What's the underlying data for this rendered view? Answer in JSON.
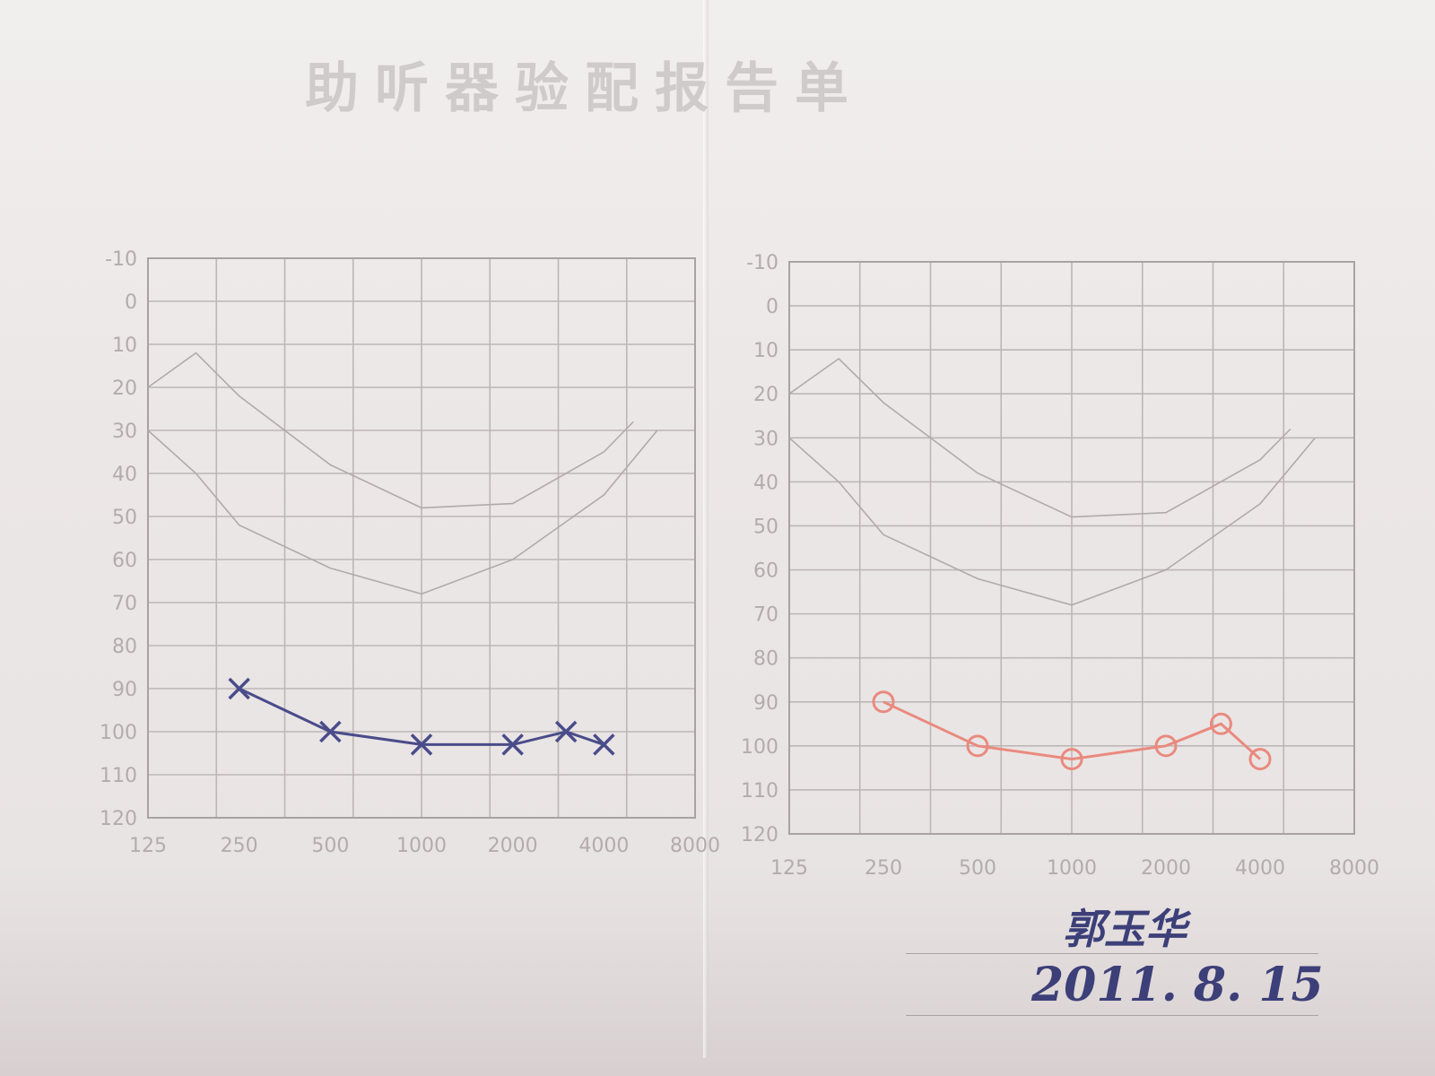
{
  "document": {
    "title": "助听器验配报告单"
  },
  "chart_data": [
    {
      "type": "line",
      "x_ticks": [
        "125",
        "250",
        "500",
        "1000",
        "2000",
        "4000",
        "8000"
      ],
      "y_ticks": [
        "120",
        "110",
        "100",
        "90",
        "80",
        "70",
        "60",
        "50",
        "40",
        "30",
        "20",
        "10",
        "0",
        "-10"
      ],
      "ylim": [
        -10,
        120
      ],
      "y_inverted": true,
      "series": [
        {
          "marker": "x",
          "color": "#4a4c8a",
          "x": [
            250,
            500,
            1000,
            2000,
            3000,
            4000
          ],
          "y": [
            90,
            100,
            103,
            103,
            100,
            103
          ]
        }
      ]
    },
    {
      "type": "line",
      "x_ticks": [
        "125",
        "250",
        "500",
        "1000",
        "2000",
        "4000",
        "8000"
      ],
      "y_ticks": [
        "120",
        "110",
        "100",
        "90",
        "80",
        "70",
        "60",
        "50",
        "40",
        "30",
        "20",
        "10",
        "0",
        "-10"
      ],
      "ylim": [
        -10,
        120
      ],
      "y_inverted": true,
      "series": [
        {
          "marker": "o",
          "color": "#e98a7e",
          "x": [
            250,
            500,
            1000,
            2000,
            3000,
            4000
          ],
          "y": [
            90,
            100,
            103,
            100,
            95,
            103
          ]
        }
      ]
    }
  ],
  "signature": {
    "name": "郭玉华",
    "date": "2011. 8. 15"
  }
}
